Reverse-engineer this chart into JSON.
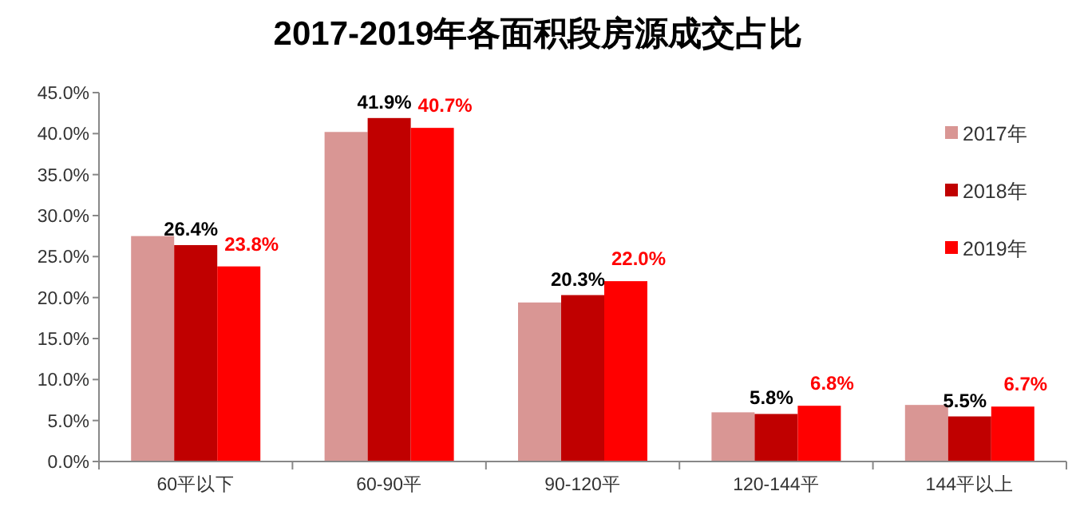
{
  "chart_data": {
    "type": "bar",
    "title": "2017-2019年各面积段房源成交占比",
    "categories": [
      "60平以下",
      "60-90平",
      "90-120平",
      "120-144平",
      "144平以上"
    ],
    "series": [
      {
        "name": "2017年",
        "color": "#d99694",
        "values": [
          27.5,
          40.2,
          19.4,
          6.0,
          6.9
        ]
      },
      {
        "name": "2018年",
        "color": "#c00000",
        "values": [
          26.4,
          41.9,
          20.3,
          5.8,
          5.5
        ],
        "value_labels": [
          "26.4%",
          "41.9%",
          "20.3%",
          "5.8%",
          "5.5%"
        ]
      },
      {
        "name": "2019年",
        "color": "#ff0000",
        "values": [
          23.8,
          40.7,
          22.0,
          6.8,
          6.7
        ],
        "value_labels": [
          "23.8%",
          "40.7%",
          "22.0%",
          "6.8%",
          "6.7%"
        ]
      }
    ],
    "ylim": [
      0,
      45
    ],
    "yticks": [
      {
        "value": 0,
        "label": "0.0%"
      },
      {
        "value": 5,
        "label": "5.0%"
      },
      {
        "value": 10,
        "label": "10.0%"
      },
      {
        "value": 15,
        "label": "15.0%"
      },
      {
        "value": 20,
        "label": "20.0%"
      },
      {
        "value": 25,
        "label": "25.0%"
      },
      {
        "value": 30,
        "label": "30.0%"
      },
      {
        "value": 35,
        "label": "35.0%"
      },
      {
        "value": 40,
        "label": "40.0%"
      },
      {
        "value": 45,
        "label": "45.0%"
      }
    ],
    "grid": false,
    "legend": "right"
  }
}
